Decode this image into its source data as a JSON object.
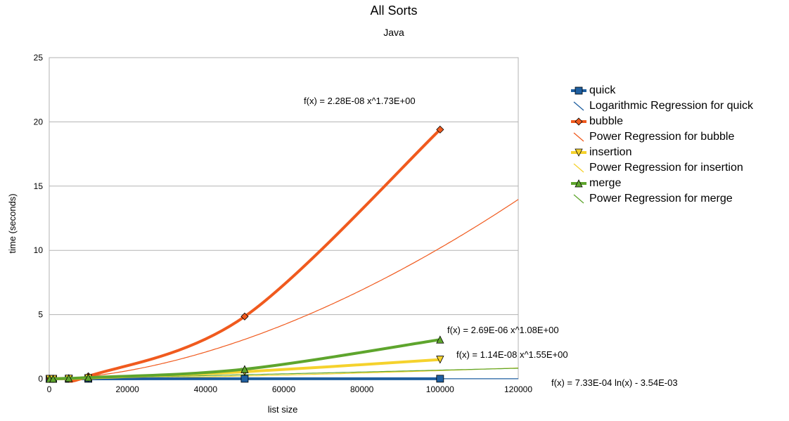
{
  "chart_data": {
    "type": "line",
    "title": "All Sorts",
    "subtitle": "Java",
    "xlabel": "list size",
    "ylabel": "time (seconds)",
    "xlim": [
      0,
      120000
    ],
    "ylim": [
      0,
      25
    ],
    "xticks": [
      0,
      20000,
      40000,
      60000,
      80000,
      100000,
      120000
    ],
    "yticks": [
      0,
      5,
      10,
      15,
      20,
      25
    ],
    "grid": "horizontal",
    "legend_position": "right",
    "x": [
      100,
      1000,
      5000,
      10000,
      50000,
      100000
    ],
    "series": [
      {
        "name": "quick",
        "color": "#1f5fa0",
        "marker": "square",
        "values": [
          0.0,
          0.001,
          0.002,
          0.003,
          0.005,
          0.01
        ]
      },
      {
        "name": "bubble",
        "color": "#f05a1e",
        "marker": "diamond",
        "values": [
          0.0,
          0.01,
          0.05,
          0.2,
          4.85,
          19.4
        ]
      },
      {
        "name": "insertion",
        "color": "#f5d22d",
        "marker": "triangle-down",
        "values": [
          0.0,
          0.002,
          0.02,
          0.07,
          0.55,
          1.5
        ]
      },
      {
        "name": "merge",
        "color": "#5ea52d",
        "marker": "triangle-up",
        "values": [
          0.0,
          0.003,
          0.05,
          0.1,
          0.75,
          3.05
        ]
      }
    ],
    "regressions": [
      {
        "name": "Logarithmic Regression for quick",
        "type": "logarithmic",
        "a": 0.000733,
        "b": -0.00354,
        "color": "#1f5fa0",
        "equation": "f(x) = 7.33E-04 ln(x) - 3.54E-03"
      },
      {
        "name": "Power Regression for bubble",
        "type": "power",
        "a": 2.28e-08,
        "b": 1.73,
        "color": "#f05a1e",
        "equation": "f(x) = 2.28E-08 x^1.73E+00"
      },
      {
        "name": "Power Regression for insertion",
        "type": "power",
        "a": 1.14e-08,
        "b": 1.55,
        "color": "#f5d22d",
        "equation": "f(x) = 1.14E-08 x^1.55E+00"
      },
      {
        "name": "Power Regression for merge",
        "type": "power",
        "a": 2.69e-06,
        "b": 1.08,
        "color": "#5ea52d",
        "equation": "f(x) = 2.69E-06 x^1.08E+00"
      }
    ]
  },
  "legend": [
    {
      "label": "quick",
      "kind": "marker",
      "color": "#1f5fa0",
      "marker": "square"
    },
    {
      "label": "Logarithmic Regression for quick",
      "kind": "line",
      "color": "#1f5fa0"
    },
    {
      "label": "bubble",
      "kind": "marker",
      "color": "#f05a1e",
      "marker": "diamond"
    },
    {
      "label": "Power Regression for bubble",
      "kind": "line",
      "color": "#f05a1e"
    },
    {
      "label": "insertion",
      "kind": "marker",
      "color": "#f5d22d",
      "marker": "triangle-down"
    },
    {
      "label": "Power Regression for insertion",
      "kind": "line",
      "color": "#f5d22d"
    },
    {
      "label": "merge",
      "kind": "marker",
      "color": "#5ea52d",
      "marker": "triangle-up"
    },
    {
      "label": "Power Regression for merge",
      "kind": "line",
      "color": "#5ea52d"
    }
  ]
}
